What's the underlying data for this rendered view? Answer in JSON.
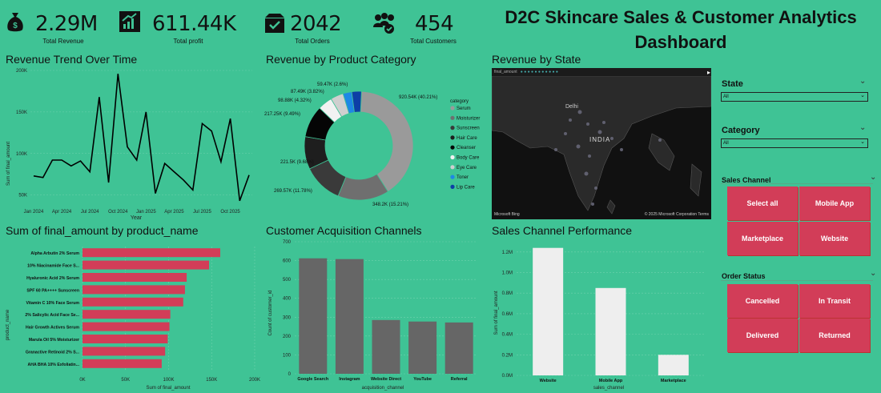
{
  "kpis": [
    {
      "value": "2.29M",
      "label": "Total Revenue",
      "icon": "money-bag-icon"
    },
    {
      "value": "611.44K",
      "label": "Total profit",
      "icon": "growth-chart-icon"
    },
    {
      "value": "2042",
      "label": "Total Orders",
      "icon": "order-box-icon"
    },
    {
      "value": "454",
      "label": "Total Customers",
      "icon": "customers-group-icon"
    }
  ],
  "dashboard_title_line1": "D2C Skincare Sales & Customer Analytics",
  "dashboard_title_line2": "Dashboard",
  "panels": {
    "revenue_trend": "Revenue Trend Over Time",
    "revenue_category": "Revenue by Product Category",
    "revenue_state": "Revenue by State",
    "product_amount": "Sum of final_amount by product_name",
    "acquisition": "Customer Acquisition Channels",
    "sales_channel": "Sales Channel Performance"
  },
  "map": {
    "legend_label": "final_amount",
    "labels": [
      "Delhi",
      "INDIA"
    ],
    "footer_left": "Microsoft Bing",
    "footer_right": "© 2025 Microsoft Corporation Terms"
  },
  "slicers": {
    "state": {
      "title": "State",
      "value": "All"
    },
    "category": {
      "title": "Category",
      "value": "All"
    },
    "sales_channel": {
      "title": "Sales Channel",
      "tiles": [
        "Select all",
        "Mobile App",
        "Marketplace",
        "Website"
      ]
    },
    "order_status": {
      "title": "Order Status",
      "tiles": [
        "Cancelled",
        "In Transit",
        "Delivered",
        "Returned"
      ]
    }
  },
  "colors": {
    "background": "#3fc395",
    "tile": "#d23d58",
    "bar_red": "#d23d58",
    "bar_gray": "#666666",
    "bar_white": "#eeeeee",
    "line": "#000000"
  },
  "chart_data": [
    {
      "id": "revenue_trend",
      "type": "line",
      "xlabel": "Year",
      "ylabel": "Sum of final_amount",
      "ylim": [
        40000,
        200000
      ],
      "yticks": [
        "200K",
        "150K",
        "100K",
        "50K"
      ],
      "ytick_values": [
        200000,
        150000,
        100000,
        50000
      ],
      "xticks": [
        "Jan 2024",
        "Apr 2024",
        "Jul 2024",
        "Oct 2024",
        "Jan 2025",
        "Apr 2025",
        "Jul 2025",
        "Oct 2025"
      ],
      "values": [
        73000,
        71000,
        92000,
        92000,
        85000,
        91000,
        78000,
        168000,
        65000,
        196000,
        108000,
        92000,
        150000,
        52000,
        88000,
        78000,
        68000,
        56000,
        136000,
        127000,
        90000,
        142000,
        43000,
        74000
      ]
    },
    {
      "id": "revenue_category",
      "type": "pie",
      "legend_title": "category",
      "legend_position": "right",
      "slices": [
        {
          "name": "Serum",
          "label": "920.54K (40.21%)",
          "value": 920540,
          "color": "#9a9a9a"
        },
        {
          "name": "Moisturizer",
          "label": "348.2K (15.21%)",
          "value": 348200,
          "color": "#6f6f6f"
        },
        {
          "name": "Sunscreen",
          "label": "269.57K (11.78%)",
          "value": 269570,
          "color": "#3a3a3a"
        },
        {
          "name": "Hair Care",
          "label": "221.5K (9.68%)",
          "value": 221500,
          "color": "#1e1e1e"
        },
        {
          "name": "Cleanser",
          "label": "217.25K (9.49%)",
          "value": 217250,
          "color": "#050505"
        },
        {
          "name": "Body Care",
          "label": "98.88K (4.32%)",
          "value": 98880,
          "color": "#f2f2f2"
        },
        {
          "name": "Eye Care",
          "label": "87.49K (3.82%)",
          "value": 87490,
          "color": "#cfcfcf"
        },
        {
          "name": "Toner",
          "label": "59.47K (2.6%)",
          "value": 59470,
          "color": "#1e88e5"
        },
        {
          "name": "Lip Care",
          "label": "",
          "value": 66000,
          "color": "#0d3fa6"
        }
      ]
    },
    {
      "id": "product_amount",
      "type": "bar",
      "orientation": "horizontal",
      "xlabel": "Sum of final_amount",
      "ylabel": "product_name",
      "xlim": [
        0,
        200000
      ],
      "xticks": [
        "0K",
        "50K",
        "100K",
        "150K",
        "200K"
      ],
      "xtick_values": [
        0,
        50000,
        100000,
        150000,
        200000
      ],
      "categories": [
        "Alpha Arbutin 2% Serum",
        "10% Niacinamide Face S...",
        "Hyaluronic Acid 2% Serum",
        "SPF 60 PA++++ Sunscreen",
        "Vitamin C 10% Face Serum",
        "2% Salicylic Acid Face Se...",
        "Hair Growth Actives Serum",
        "Marula Oil 5% Moisturizer",
        "Granactive Retinoid 2% S...",
        "AHA BHA 10% Exfoliatin..."
      ],
      "values": [
        160000,
        147000,
        121000,
        119000,
        117000,
        102000,
        101000,
        99000,
        96000,
        92000
      ]
    },
    {
      "id": "acquisition",
      "type": "bar",
      "xlabel": "acquisition_channel",
      "ylabel": "Count of customer_id",
      "ylim": [
        0,
        700
      ],
      "yticks": [
        "700",
        "600",
        "500",
        "400",
        "300",
        "200",
        "100",
        "0"
      ],
      "ytick_values": [
        700,
        600,
        500,
        400,
        300,
        200,
        100,
        0
      ],
      "categories": [
        "Google Search",
        "Instagram",
        "Website Direct",
        "YouTube",
        "Referral"
      ],
      "values": [
        612,
        608,
        285,
        277,
        272
      ]
    },
    {
      "id": "sales_channel",
      "type": "bar",
      "xlabel": "sales_channel",
      "ylabel": "Sum of final_amount",
      "ylim": [
        0,
        1300000
      ],
      "yticks": [
        "1.2M",
        "1.0M",
        "0.8M",
        "0.6M",
        "0.4M",
        "0.2M",
        "0.0M"
      ],
      "ytick_values": [
        1200000,
        1000000,
        800000,
        600000,
        400000,
        200000,
        0
      ],
      "categories": [
        "Website",
        "Mobile App",
        "Marketplace"
      ],
      "values": [
        1240000,
        850000,
        200000
      ]
    }
  ]
}
